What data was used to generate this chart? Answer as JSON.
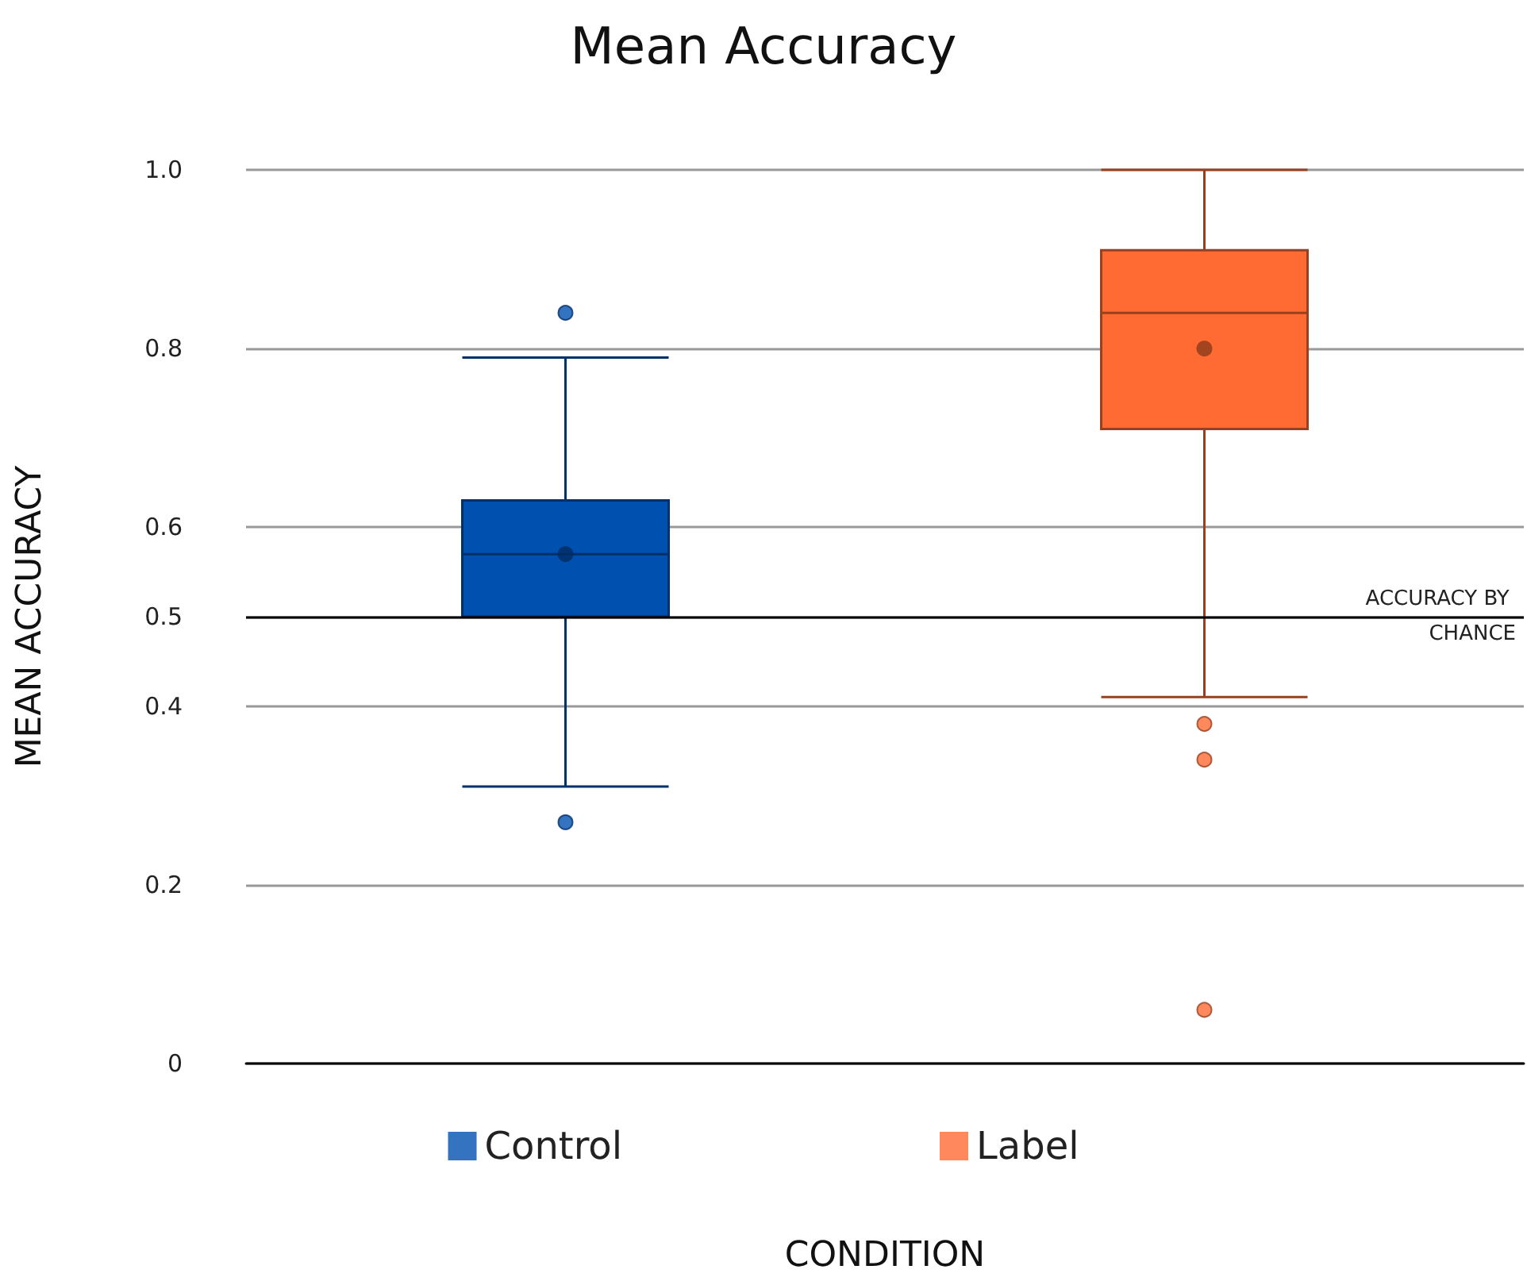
{
  "chart_data": {
    "type": "box",
    "title": "Mean Accuracy",
    "xlabel": "CONDITION",
    "ylabel": "MEAN ACCURACY",
    "categories": [
      null,
      null
    ],
    "series": [
      {
        "name": "Control",
        "color": "#0050b0",
        "boxes": [
          {
            "low": 0.31,
            "q1": 0.5,
            "median": 0.57,
            "q3": 0.63,
            "high": 0.79,
            "mean": 0.57,
            "outliers": [
              0.84,
              0.27
            ]
          },
          null
        ]
      },
      {
        "name": "Label",
        "color": "#ff6b33",
        "boxes": [
          null,
          {
            "low": 0.41,
            "q1": 0.71,
            "median": 0.84,
            "q3": 0.91,
            "high": 1.0,
            "mean": 0.8,
            "outliers": [
              0.38,
              0.34,
              0.06
            ]
          }
        ]
      }
    ],
    "ylim": [
      0,
      1
    ],
    "yticks": [
      0,
      0.2,
      0.4,
      0.5,
      0.6,
      0.8,
      {
        "value": 1,
        "label": "1.0"
      }
    ],
    "grid": "y",
    "legend": "bottom",
    "ref_lines": [
      {
        "axis": "y",
        "value": 0.5,
        "label": "ACCURACY BY CHANCE",
        "color": "#000000"
      }
    ]
  }
}
